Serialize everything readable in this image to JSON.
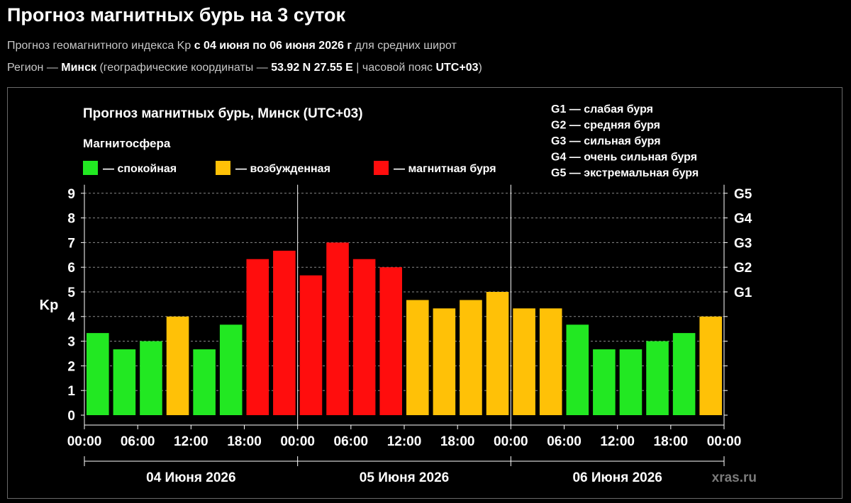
{
  "page": {
    "title": "Прогноз магнитных бурь на 3 суток",
    "line1": {
      "prefix": "Прогноз геомагнитного индекса Kp ",
      "range": "с 04 июня по 06 июня 2026 г",
      "suffix": " для средних широт"
    },
    "line2": {
      "prefix": "Регион — ",
      "city": "Минск",
      "mid": " (географические координаты — ",
      "coords": "53.92 N 27.55 E",
      "sep": " | часовой пояс ",
      "tz": "UTC+03",
      "end": ")"
    }
  },
  "colors": {
    "calm": "#22e822",
    "excited": "#ffc107",
    "storm": "#ff0d0d",
    "grid": "#8a8a8a",
    "text": "#ffffff"
  },
  "chart_data": {
    "type": "bar",
    "title": "Прогноз магнитных бурь, Минск (UTC+03)",
    "ylabel": "Kp",
    "ylim": [
      0,
      9
    ],
    "yticks": [
      "0",
      "1",
      "2",
      "3",
      "4",
      "5",
      "6",
      "7",
      "8",
      "9"
    ],
    "right_ticks": [
      {
        "value": 5,
        "label": "G1"
      },
      {
        "value": 6,
        "label": "G2"
      },
      {
        "value": 7,
        "label": "G3"
      },
      {
        "value": 8,
        "label": "G4"
      },
      {
        "value": 9,
        "label": "G5"
      }
    ],
    "legend_title": "Магнитосфера",
    "legend": [
      {
        "key": "calm",
        "label": "— спокойная"
      },
      {
        "key": "excited",
        "label": "— возбужденная"
      },
      {
        "key": "storm",
        "label": "— магнитная буря"
      }
    ],
    "g_scale": [
      "G1 — слабая буря",
      "G2 — средняя буря",
      "G3 — сильная буря",
      "G4 — очень сильная буря",
      "G5 — экстремальная буря"
    ],
    "xticks": [
      "00:00",
      "06:00",
      "12:00",
      "18:00",
      "00:00",
      "06:00",
      "12:00",
      "18:00",
      "00:00",
      "06:00",
      "12:00",
      "18:00",
      "00:00"
    ],
    "days": [
      "04 Июня 2026",
      "05 Июня 2026",
      "06 Июня 2026"
    ],
    "interval_hours": 3,
    "values": [
      3.33,
      2.67,
      3.0,
      4.0,
      2.67,
      3.67,
      6.33,
      6.67,
      5.67,
      7.0,
      6.33,
      6.0,
      4.67,
      4.33,
      4.67,
      5.0,
      4.33,
      4.33,
      3.67,
      2.67,
      2.67,
      3.0,
      3.33,
      4.0
    ],
    "categories": [
      "calm",
      "calm",
      "calm",
      "excited",
      "calm",
      "calm",
      "storm",
      "storm",
      "storm",
      "storm",
      "storm",
      "storm",
      "excited",
      "excited",
      "excited",
      "excited",
      "excited",
      "excited",
      "calm",
      "calm",
      "calm",
      "calm",
      "calm",
      "excited"
    ],
    "grid": true,
    "watermark": "xras.ru"
  }
}
